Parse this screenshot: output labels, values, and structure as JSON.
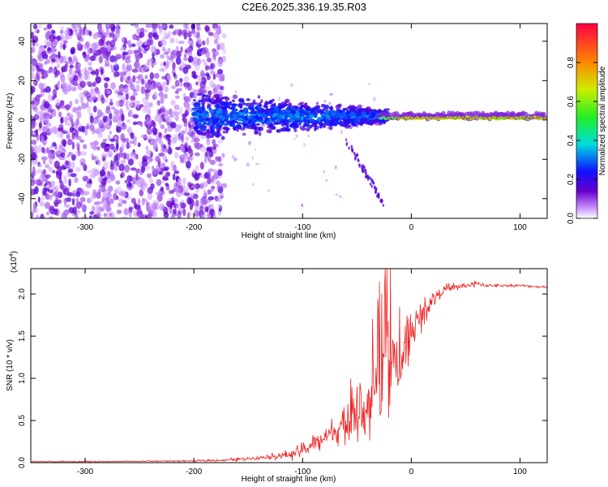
{
  "title": "C2E6.2025.336.19.35.R03",
  "chart_data": [
    {
      "type": "heatmap",
      "name": "spectrogram",
      "xlabel": "Height of straight line (km)",
      "ylabel": "Frequency (Hz)",
      "xlim": [
        -350,
        125
      ],
      "ylim": [
        -50,
        49
      ],
      "xticks": [
        -300,
        -200,
        -100,
        0,
        100
      ],
      "xtick_labels": [
        "-300",
        "-200",
        "-100",
        "0",
        "100"
      ],
      "yticks": [
        -40,
        -20,
        0,
        20,
        40
      ],
      "ytick_labels": [
        "-40",
        "-20",
        "0",
        "20",
        "40"
      ],
      "description_regions": [
        {
          "x_range": [
            -350,
            -175
          ],
          "f_range": [
            -50,
            49
          ],
          "amplitude": [
            0.0,
            0.2
          ],
          "pattern": "broadband noise"
        },
        {
          "x_range": [
            -200,
            -25
          ],
          "f_range": [
            -15,
            15
          ],
          "amplitude": [
            0.1,
            0.35
          ],
          "pattern": "signal band"
        },
        {
          "x_range": [
            -25,
            125
          ],
          "f_range": [
            -2,
            2
          ],
          "amplitude": [
            0.4,
            1.0
          ],
          "pattern": "narrow carrier"
        }
      ]
    },
    {
      "type": "colorbar",
      "name": "colorbar",
      "label": "Normalized spectral amplitude",
      "range": [
        0,
        1
      ],
      "ticks": [
        0.0,
        0.2,
        0.4,
        0.6,
        0.8
      ],
      "tick_labels": [
        "0.0",
        "0.2",
        "0.4",
        "0.6",
        "0.8"
      ]
    },
    {
      "type": "line",
      "name": "snr",
      "series": [
        {
          "name": "SNR",
          "color": "#ee2222"
        }
      ],
      "xlabel": "Height of straight line (km)",
      "ylabel": "SNR (10 * v/v)",
      "scale_label": "(x10",
      "scale_exp": "4",
      "scale_close": ")",
      "xlim": [
        -350,
        125
      ],
      "ylim": [
        0,
        2.3
      ],
      "xticks": [
        -300,
        -200,
        -100,
        0,
        100
      ],
      "xtick_labels": [
        "-300",
        "-200",
        "-100",
        "0",
        "100"
      ],
      "yticks": [
        0.0,
        0.5,
        1.0,
        1.5,
        2.0
      ],
      "ytick_labels": [
        "0.0",
        "0.5",
        "1.0",
        "1.5",
        "2.0"
      ],
      "envelope_x": [
        -350,
        -200,
        -170,
        -150,
        -130,
        -110,
        -100,
        -90,
        -80,
        -70,
        -60,
        -50,
        -40,
        -30,
        -25,
        -20,
        -15,
        -10,
        -5,
        0,
        10,
        20,
        30,
        40,
        50,
        60,
        70,
        80,
        100,
        125
      ],
      "envelope_y": [
        0.01,
        0.02,
        0.03,
        0.05,
        0.07,
        0.1,
        0.15,
        0.22,
        0.3,
        0.38,
        0.45,
        0.55,
        0.7,
        0.85,
        1.0,
        1.1,
        1.15,
        1.2,
        1.35,
        1.55,
        1.75,
        1.95,
        2.05,
        2.08,
        2.1,
        2.12,
        2.1,
        2.1,
        2.1,
        2.08
      ],
      "spread_y": [
        0.01,
        0.01,
        0.02,
        0.03,
        0.04,
        0.08,
        0.1,
        0.15,
        0.18,
        0.2,
        0.25,
        0.35,
        0.45,
        0.6,
        0.9,
        0.9,
        0.6,
        0.5,
        0.4,
        0.3,
        0.2,
        0.12,
        0.08,
        0.06,
        0.05,
        0.05,
        0.03,
        0.02,
        0.02,
        0.02
      ],
      "sample_count": 900
    }
  ]
}
